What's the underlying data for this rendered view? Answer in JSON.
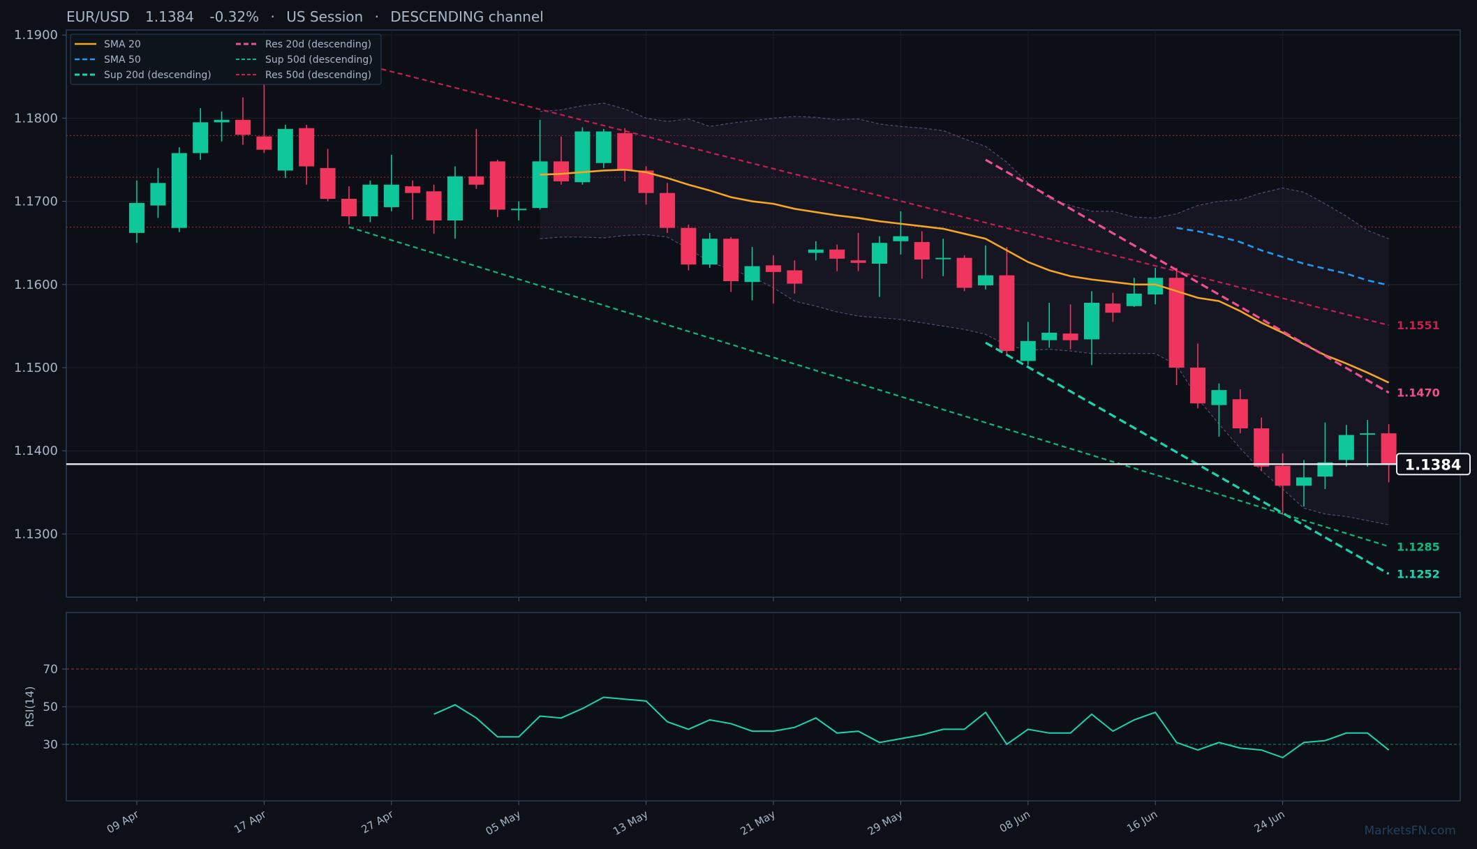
{
  "header": {
    "symbol": "EUR/USD",
    "price": "1.1384",
    "change": "-0.32%",
    "sep1": "·",
    "session": "US Session",
    "sep2": "·",
    "channel": "DESCENDING channel"
  },
  "watermark": "MarketsFN.com",
  "colors": {
    "bg": "#0d1117",
    "frame": "#2a3f5a",
    "up": "#0ec79a",
    "down": "#f0365f",
    "sma20": "#f5a623",
    "sma50": "#1e9bf0",
    "sup20": "#18d6b0",
    "res20": "#f0508f",
    "sup50": "#10b87a",
    "res50": "#c8204e",
    "text": "#a8b6c8",
    "rsi": "#18d6b0"
  },
  "chart_data": [
    {
      "type": "candlestick",
      "ylim": [
        1.1224,
        1.1906
      ],
      "y_ticks": [
        "1.1300",
        "1.1400",
        "1.1500",
        "1.1600",
        "1.1700",
        "1.1800",
        "1.1900"
      ],
      "y_tick_values": [
        1.13,
        1.14,
        1.15,
        1.16,
        1.17,
        1.18,
        1.19
      ],
      "x_tick_labels": [
        "09 Apr",
        "17 Apr",
        "27 Apr",
        "05 May",
        "13 May",
        "21 May",
        "29 May",
        "08 Jun",
        "16 Jun",
        "24 Jun"
      ],
      "x_tick_index": [
        0,
        6,
        12,
        18,
        24,
        30,
        36,
        42,
        48,
        54
      ],
      "candles": [
        [
          1.1662,
          1.1698,
          1.165,
          1.1725
        ],
        [
          1.1695,
          1.1722,
          1.168,
          1.174
        ],
        [
          1.1668,
          1.1758,
          1.1663,
          1.1765
        ],
        [
          1.1758,
          1.1795,
          1.175,
          1.1812
        ],
        [
          1.1795,
          1.1798,
          1.1772,
          1.1808
        ],
        [
          1.1798,
          1.178,
          1.1768,
          1.1825
        ],
        [
          1.1778,
          1.1762,
          1.1758,
          1.1845
        ],
        [
          1.1737,
          1.1787,
          1.1728,
          1.1792
        ],
        [
          1.1788,
          1.1742,
          1.172,
          1.1792
        ],
        [
          1.174,
          1.1703,
          1.17,
          1.1763
        ],
        [
          1.1703,
          1.1682,
          1.1672,
          1.1718
        ],
        [
          1.1682,
          1.172,
          1.1675,
          1.1725
        ],
        [
          1.1693,
          1.172,
          1.1688,
          1.1756
        ],
        [
          1.1718,
          1.171,
          1.1678,
          1.1725
        ],
        [
          1.1712,
          1.1677,
          1.1661,
          1.172
        ],
        [
          1.1677,
          1.173,
          1.1655,
          1.1742
        ],
        [
          1.173,
          1.172,
          1.1715,
          1.1787
        ],
        [
          1.1748,
          1.169,
          1.1681,
          1.175
        ],
        [
          1.169,
          1.1691,
          1.1677,
          1.17
        ],
        [
          1.1692,
          1.1748,
          1.169,
          1.1798
        ],
        [
          1.1748,
          1.1724,
          1.172,
          1.1778
        ],
        [
          1.1723,
          1.1784,
          1.172,
          1.1789
        ],
        [
          1.1746,
          1.1784,
          1.174,
          1.1787
        ],
        [
          1.1782,
          1.1737,
          1.1724,
          1.1788
        ],
        [
          1.1737,
          1.171,
          1.1696,
          1.1742
        ],
        [
          1.171,
          1.1668,
          1.1662,
          1.1722
        ],
        [
          1.1668,
          1.1624,
          1.1617,
          1.1672
        ],
        [
          1.1624,
          1.1655,
          1.162,
          1.1662
        ],
        [
          1.1655,
          1.1604,
          1.1591,
          1.1657
        ],
        [
          1.1603,
          1.1622,
          1.1581,
          1.1645
        ],
        [
          1.1623,
          1.1615,
          1.1577,
          1.1635
        ],
        [
          1.1617,
          1.1601,
          1.1589,
          1.1629
        ],
        [
          1.1638,
          1.1642,
          1.1629,
          1.1652
        ],
        [
          1.1642,
          1.1631,
          1.1616,
          1.1648
        ],
        [
          1.1629,
          1.1626,
          1.1616,
          1.1662
        ],
        [
          1.1625,
          1.165,
          1.1585,
          1.1658
        ],
        [
          1.1652,
          1.1658,
          1.1636,
          1.1688
        ],
        [
          1.1651,
          1.163,
          1.1607,
          1.1664
        ],
        [
          1.1631,
          1.1632,
          1.161,
          1.1655
        ],
        [
          1.1632,
          1.1596,
          1.1592,
          1.1635
        ],
        [
          1.1599,
          1.1611,
          1.1594,
          1.1647
        ],
        [
          1.1611,
          1.152,
          1.1516,
          1.1645
        ],
        [
          1.1508,
          1.1532,
          1.1503,
          1.1555
        ],
        [
          1.1533,
          1.1542,
          1.1524,
          1.1578
        ],
        [
          1.1541,
          1.1533,
          1.1522,
          1.1576
        ],
        [
          1.1534,
          1.1578,
          1.1503,
          1.1592
        ],
        [
          1.1577,
          1.1566,
          1.1555,
          1.159
        ],
        [
          1.1574,
          1.1589,
          1.1573,
          1.1608
        ],
        [
          1.1588,
          1.1608,
          1.1576,
          1.162
        ],
        [
          1.1608,
          1.15,
          1.1479,
          1.162
        ],
        [
          1.15,
          1.1457,
          1.1451,
          1.1529
        ],
        [
          1.1455,
          1.1473,
          1.1417,
          1.1481
        ],
        [
          1.1462,
          1.1427,
          1.1421,
          1.1474
        ],
        [
          1.1427,
          1.1381,
          1.1376,
          1.144
        ],
        [
          1.1382,
          1.1358,
          1.1323,
          1.1397
        ],
        [
          1.1358,
          1.1368,
          1.1333,
          1.1389
        ],
        [
          1.1369,
          1.1386,
          1.1354,
          1.1434
        ],
        [
          1.1389,
          1.1419,
          1.1381,
          1.1431
        ],
        [
          1.1421,
          1.1421,
          1.1381,
          1.1437
        ],
        [
          1.1421,
          1.1384,
          1.1362,
          1.1432
        ]
      ],
      "current_price": 1.1384,
      "current_price_label": "1.1384",
      "horizontal_levels": [
        1.1779,
        1.1729,
        1.1669
      ],
      "sma20": {
        "name": "SMA 20",
        "start": 19,
        "values": [
          1.1732,
          1.1733,
          1.1735,
          1.1737,
          1.1738,
          1.1735,
          1.1728,
          1.172,
          1.1713,
          1.1705,
          1.17,
          1.1697,
          1.1691,
          1.1687,
          1.1683,
          1.168,
          1.1676,
          1.1673,
          1.167,
          1.1667,
          1.1661,
          1.1655,
          1.1641,
          1.1627,
          1.1617,
          1.161,
          1.1606,
          1.1603,
          1.16,
          1.16,
          1.1592,
          1.1584,
          1.158,
          1.1568,
          1.1554,
          1.1542,
          1.1528,
          1.1515,
          1.1505,
          1.1494,
          1.1482
        ]
      },
      "sma50": {
        "name": "SMA 50",
        "start": 49,
        "values": [
          1.1668,
          1.1664,
          1.1658,
          1.1651,
          1.1641,
          1.1633,
          1.1625,
          1.1619,
          1.1613,
          1.1605,
          1.1599
        ]
      },
      "band_upper": {
        "start": 19,
        "values": [
          1.1808,
          1.181,
          1.1815,
          1.1818,
          1.1811,
          1.18,
          1.1796,
          1.1799,
          1.179,
          1.1794,
          1.1797,
          1.18,
          1.1802,
          1.1801,
          1.1798,
          1.1799,
          1.1793,
          1.179,
          1.1788,
          1.1785,
          1.1775,
          1.1766,
          1.1747,
          1.1722,
          1.1703,
          1.1695,
          1.1688,
          1.1688,
          1.1681,
          1.168,
          1.1685,
          1.1695,
          1.17,
          1.1702,
          1.171,
          1.1716,
          1.1711,
          1.1697,
          1.1682,
          1.1665,
          1.1655
        ]
      },
      "band_lower": {
        "start": 19,
        "values": [
          1.1655,
          1.1657,
          1.1657,
          1.1656,
          1.1659,
          1.166,
          1.1657,
          1.1643,
          1.1627,
          1.1618,
          1.1609,
          1.1596,
          1.158,
          1.1574,
          1.1567,
          1.1562,
          1.156,
          1.1558,
          1.1554,
          1.155,
          1.1546,
          1.154,
          1.1527,
          1.1521,
          1.1522,
          1.152,
          1.1517,
          1.1517,
          1.1517,
          1.1517,
          1.1503,
          1.1463,
          1.1432,
          1.1403,
          1.1376,
          1.1354,
          1.1331,
          1.1324,
          1.1321,
          1.1316,
          1.1311
        ]
      },
      "trendlines": [
        {
          "name": "Sup 20d (descending)",
          "x": [
            40,
            59
          ],
          "y": [
            1.153,
            1.1252
          ],
          "label": "1.1252"
        },
        {
          "name": "Res 20d (descending)",
          "x": [
            40,
            59
          ],
          "y": [
            1.175,
            1.147
          ],
          "label": "1.1470"
        },
        {
          "name": "Sup 50d (descending)",
          "x": [
            10,
            59
          ],
          "y": [
            1.1669,
            1.1285
          ],
          "label": "1.1285"
        },
        {
          "name": "Res 50d (descending)",
          "x": [
            10,
            59
          ],
          "y": [
            1.1869,
            1.1551
          ],
          "label": "1.1551"
        }
      ],
      "legend_position": "top-left",
      "grid": true
    },
    {
      "type": "line",
      "ylabel": "RSI(14)",
      "ylim": [
        0,
        100
      ],
      "y_ticks": [
        "30",
        "50",
        "70"
      ],
      "y_tick_values": [
        30,
        50,
        70
      ],
      "overbought": 70,
      "oversold": 30,
      "rsi": {
        "start": 14,
        "values": [
          46,
          51,
          44,
          34,
          34,
          45,
          44,
          49,
          55,
          54,
          53,
          42,
          38,
          43,
          41,
          37,
          37,
          39,
          44,
          36,
          37,
          31,
          33,
          35,
          38,
          38,
          47,
          30,
          38,
          36,
          36,
          46,
          37,
          43,
          47,
          31,
          27,
          31,
          28,
          27,
          23,
          31,
          32,
          36,
          36,
          27
        ]
      }
    }
  ]
}
